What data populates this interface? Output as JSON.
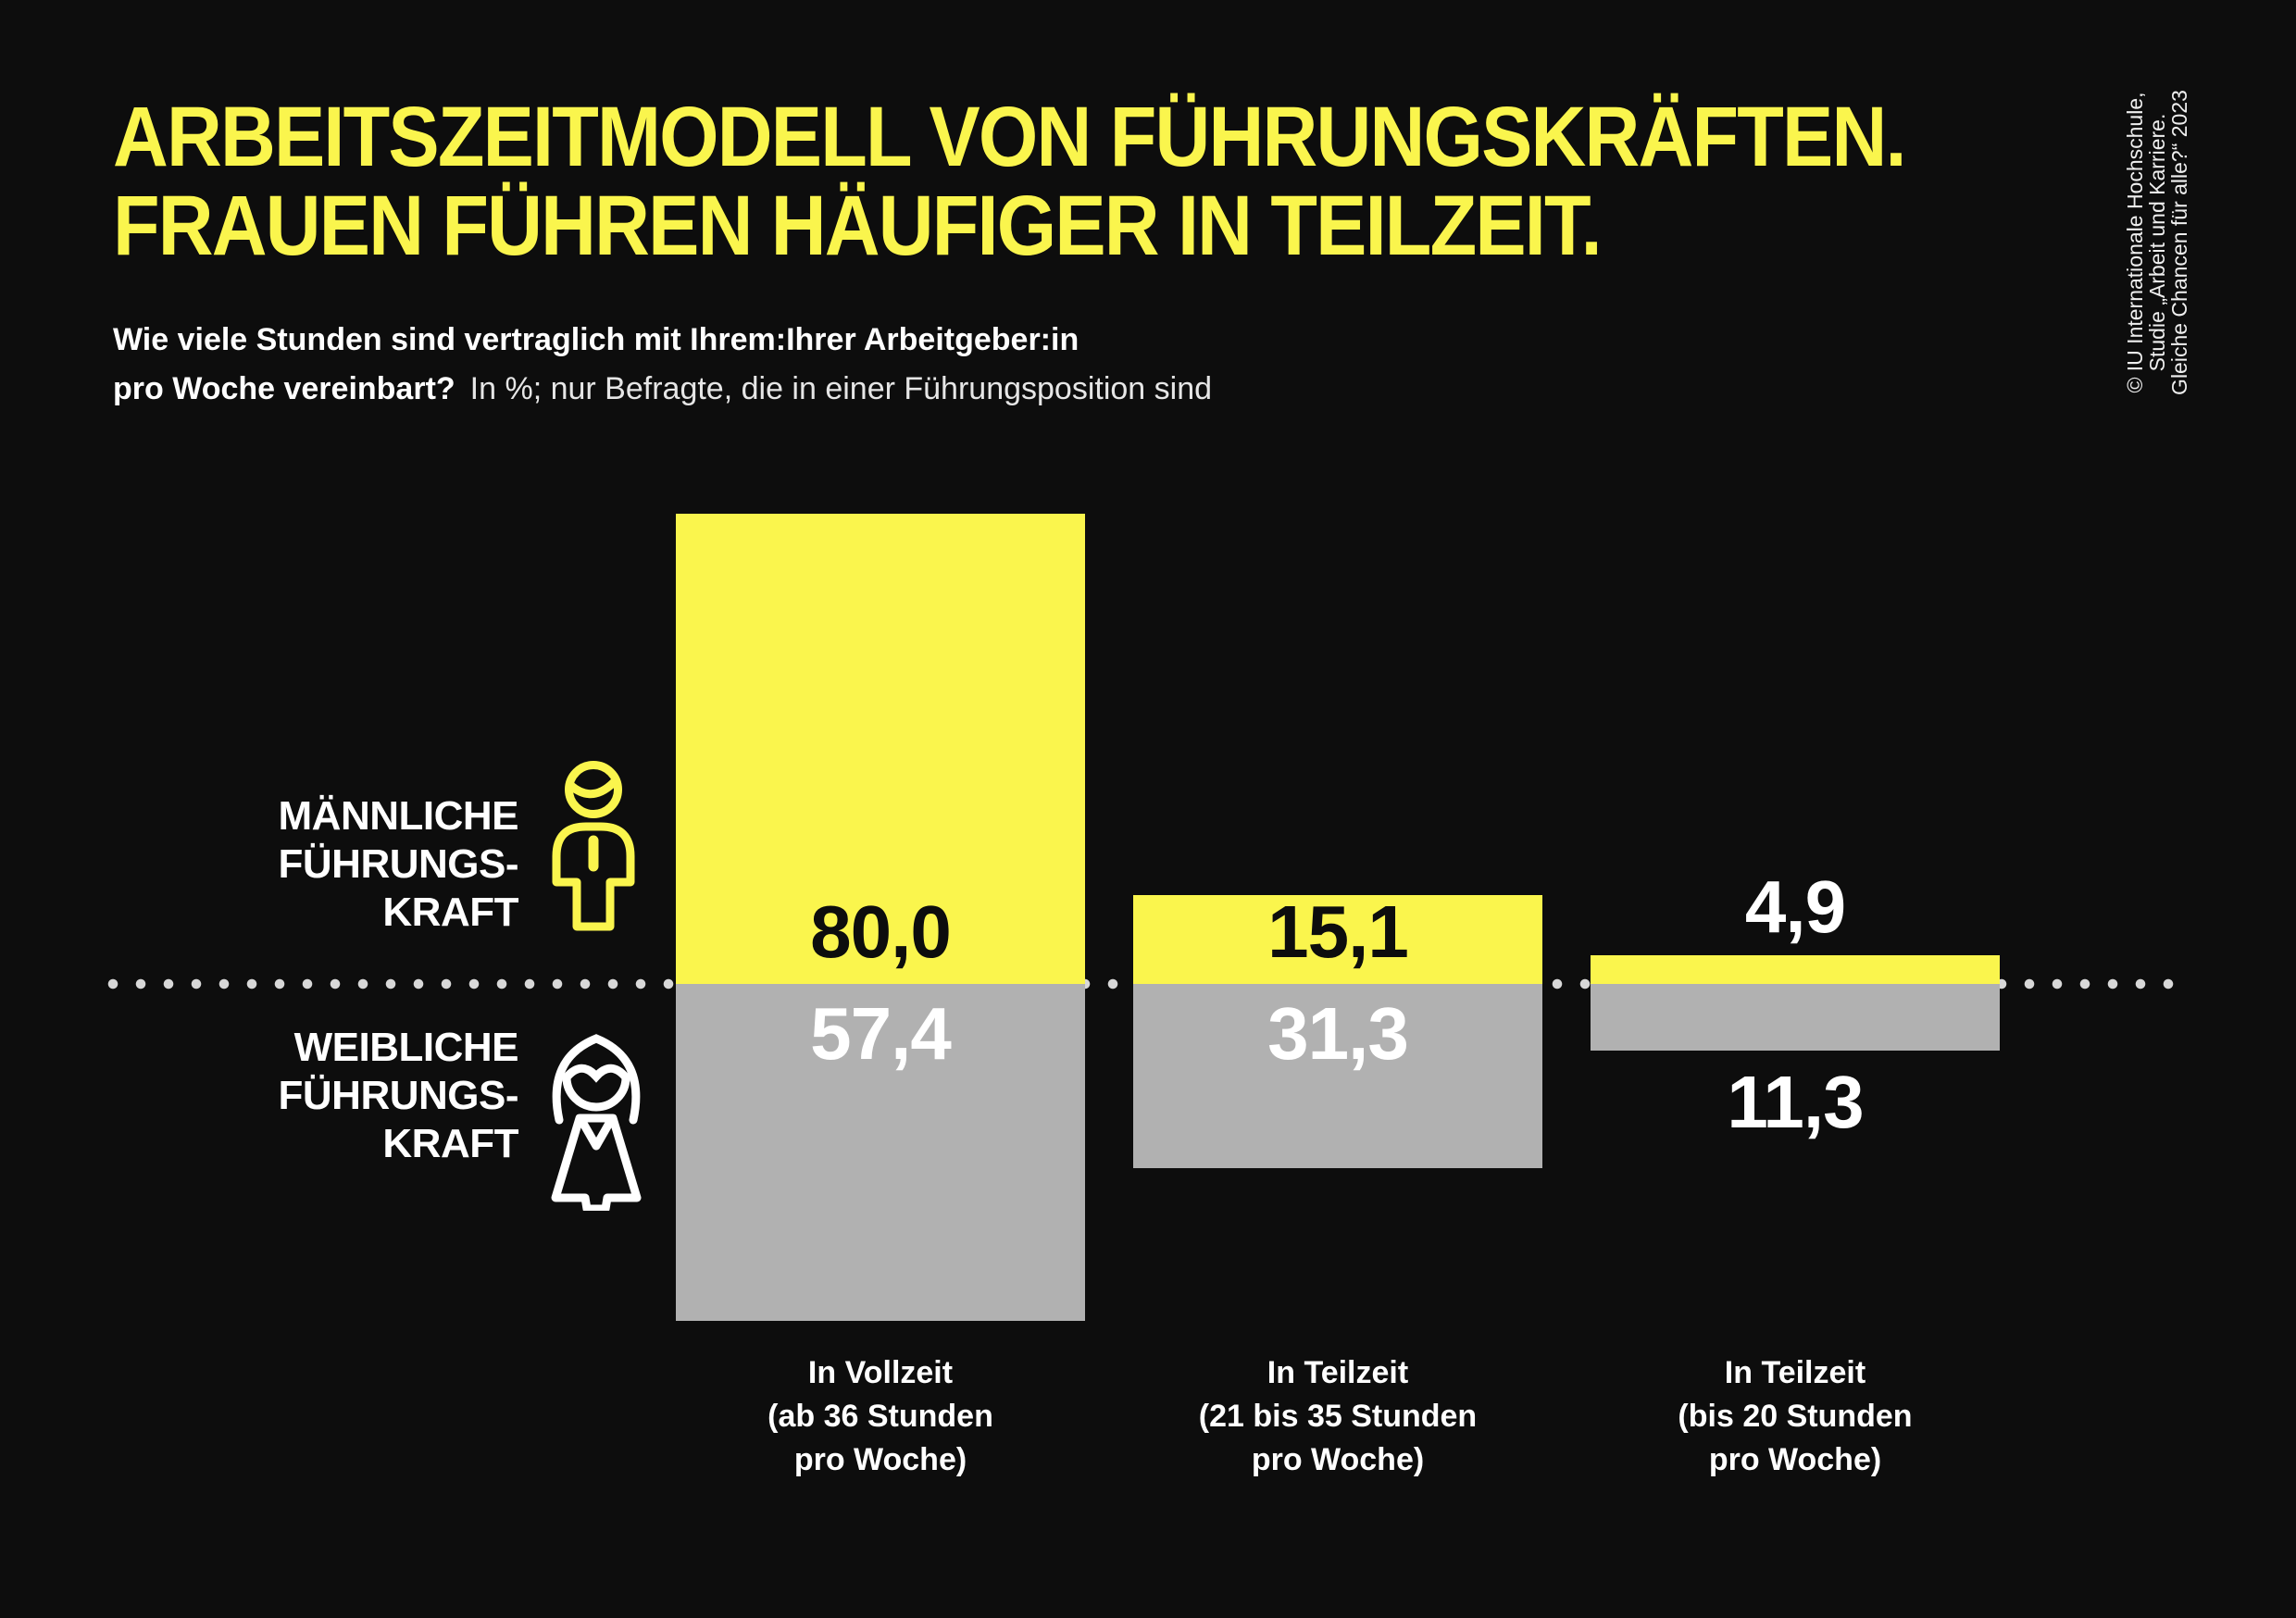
{
  "header": {
    "title_line1": "ARBEITSZEITMODELL VON FÜHRUNGSKRÄFTEN.",
    "title_line2": "FRAUEN FÜHREN HÄUFIGER IN TEILZEIT.",
    "question_bold_line1": "Wie viele Stunden sind vertraglich mit Ihrem:Ihrer Arbeitgeber:in",
    "question_bold_line2": "pro Woche vereinbart?",
    "question_note": "In %; nur Befragte, die in einer Führungsposition sind"
  },
  "source": {
    "line1": "© IU Internationale Hochschule,",
    "line2": "Studie „Arbeit und Karriere.",
    "line3": "Gleiche Chancen für alle?“ 2023"
  },
  "legend": {
    "male": {
      "line1": "MÄNNLICHE",
      "line2": "FÜHRUNGS-",
      "line3": "KRAFT",
      "icon": "male-person-icon"
    },
    "female": {
      "line1": "WEIBLICHE",
      "line2": "FÜHRUNGS-",
      "line3": "KRAFT",
      "icon": "female-person-icon"
    }
  },
  "colors": {
    "background": "#0D0D0D",
    "accent_yellow": "#FAF54D",
    "bar_gray": "#B1B1B1",
    "dot_gray": "#D8D8D8",
    "text_white": "#FFFFFF",
    "value_on_yellow": "#0D0D0D"
  },
  "chart_data": {
    "type": "bar",
    "orientation": "diverging-vertical",
    "unit": "%",
    "title": "Arbeitszeitmodell von Führungskräften",
    "grid": false,
    "legend_position": "left",
    "baseline": 0,
    "categories": [
      {
        "lines": [
          "In Vollzeit",
          "(ab 36 Stunden",
          "pro Woche)"
        ]
      },
      {
        "lines": [
          "In Teilzeit",
          "(21 bis 35 Stunden",
          "pro Woche)"
        ]
      },
      {
        "lines": [
          "In Teilzeit",
          "(bis 20 Stunden",
          "pro Woche)"
        ]
      }
    ],
    "series": [
      {
        "name": "Männliche Führungskraft",
        "direction": "up",
        "color": "#FAF54D",
        "values": [
          80.0,
          15.1,
          4.9
        ],
        "labels": [
          "80,0",
          "15,1",
          "4,9"
        ]
      },
      {
        "name": "Weibliche Führungskraft",
        "direction": "down",
        "color": "#B1B1B1",
        "values": [
          57.4,
          31.3,
          11.3
        ],
        "labels": [
          "57,4",
          "31,3",
          "11,3"
        ]
      }
    ]
  }
}
